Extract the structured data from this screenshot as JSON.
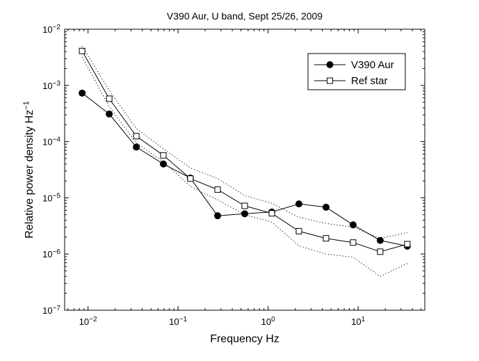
{
  "chart_data": {
    "type": "line",
    "title": "V390 Aur, U band, Sept 25/26, 2009",
    "xlabel": "Frequency  Hz",
    "ylabel": "Relative power density  Hz",
    "ylabel_exponent": "−1",
    "xscale": "log",
    "yscale": "log",
    "xlim": [
      0.0055,
      55
    ],
    "ylim": [
      1e-07,
      0.01
    ],
    "grid": false,
    "legend_position": "top-right",
    "x_tick_labels": [
      {
        "value": 0.01,
        "base": "10",
        "exp": "−2"
      },
      {
        "value": 0.1,
        "base": "10",
        "exp": "−1"
      },
      {
        "value": 1,
        "base": "10",
        "exp": "0"
      },
      {
        "value": 10,
        "base": "10",
        "exp": "1"
      }
    ],
    "y_tick_labels": [
      {
        "value": 1e-07,
        "base": "10",
        "exp": "−7"
      },
      {
        "value": 1e-06,
        "base": "10",
        "exp": "−6"
      },
      {
        "value": 1e-05,
        "base": "10",
        "exp": "−5"
      },
      {
        "value": 0.0001,
        "base": "10",
        "exp": "−4"
      },
      {
        "value": 0.001,
        "base": "10",
        "exp": "−3"
      },
      {
        "value": 0.01,
        "base": "10",
        "exp": "−2"
      }
    ],
    "series": [
      {
        "name": "V390 Aur",
        "marker": "filled-circle",
        "line": "solid",
        "x": [
          0.0086,
          0.0172,
          0.0344,
          0.0687,
          0.137,
          0.275,
          0.55,
          1.1,
          2.2,
          4.4,
          8.8,
          17.6,
          35.2
        ],
        "y": [
          0.00073,
          0.00031,
          8e-05,
          4e-05,
          2.25e-05,
          4.8e-06,
          5.2e-06,
          5.6e-06,
          7.8e-06,
          6.8e-06,
          3.3e-06,
          1.75e-06,
          1.38e-06
        ]
      },
      {
        "name": "Ref star",
        "marker": "open-square",
        "line": "solid",
        "x": [
          0.0086,
          0.0172,
          0.0344,
          0.0687,
          0.137,
          0.275,
          0.55,
          1.1,
          2.2,
          4.4,
          8.8,
          17.6,
          35.2
        ],
        "y": [
          0.0041,
          0.00058,
          0.000125,
          5.7e-05,
          2.2e-05,
          1.4e-05,
          7.2e-06,
          5.3e-06,
          2.55e-06,
          1.9e-06,
          1.6e-06,
          1.1e-06,
          1.5e-06
        ]
      },
      {
        "marker": "none",
        "line": "dotted",
        "x": [
          0.0086,
          0.0172,
          0.0344,
          0.0687,
          0.137,
          0.275,
          0.55,
          1.1,
          2.2,
          4.4,
          8.8,
          17.6,
          35.2
        ],
        "y": [
          0.005,
          0.00082,
          0.00017,
          7.5e-05,
          3.4e-05,
          2.2e-05,
          1.1e-05,
          8e-06,
          4.5e-06,
          3.5e-06,
          3e-06,
          1.9e-06,
          2.4e-06
        ]
      },
      {
        "marker": "none",
        "line": "dotted",
        "x": [
          0.0086,
          0.0172,
          0.0344,
          0.0687,
          0.137,
          0.275,
          0.55,
          1.1,
          2.2,
          4.4,
          8.8,
          17.6,
          35.2
        ],
        "y": [
          0.0032,
          0.00042,
          9.5e-05,
          4.4e-05,
          1.6e-05,
          9.2e-06,
          5e-06,
          3.7e-06,
          1.4e-06,
          1e-06,
          8.8e-07,
          4e-07,
          6.8e-07
        ]
      }
    ]
  }
}
